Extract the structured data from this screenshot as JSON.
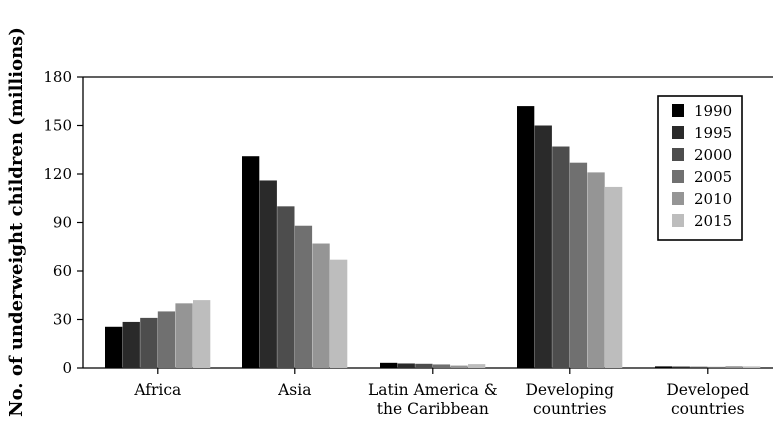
{
  "chart_data": {
    "type": "bar",
    "title": "",
    "xlabel": "",
    "ylabel": "No. of underweight children (millions)",
    "ylim": [
      0,
      180
    ],
    "yticks": [
      0,
      30,
      60,
      90,
      120,
      150,
      180
    ],
    "categories": [
      [
        "Africa"
      ],
      [
        "Asia"
      ],
      [
        "Latin America &",
        "the Caribbean"
      ],
      [
        "Developing",
        "countries"
      ],
      [
        "Developed",
        "countries"
      ]
    ],
    "series": [
      {
        "name": "1990",
        "color": "#000000",
        "values": [
          25.5,
          131,
          3.2,
          162,
          1.0
        ]
      },
      {
        "name": "1995",
        "color": "#2a2a2a",
        "values": [
          28.5,
          116,
          2.8,
          150,
          0.9
        ]
      },
      {
        "name": "2000",
        "color": "#4d4d4d",
        "values": [
          31,
          100,
          2.6,
          137,
          0.8
        ]
      },
      {
        "name": "2005",
        "color": "#707070",
        "values": [
          35,
          88,
          2.2,
          127,
          0.7
        ]
      },
      {
        "name": "2010",
        "color": "#959595",
        "values": [
          40,
          77,
          1.5,
          121,
          1.1
        ]
      },
      {
        "name": "2015",
        "color": "#bdbdbd",
        "values": [
          42,
          67,
          2.4,
          112,
          1.0
        ]
      }
    ],
    "legend_position": "top-right",
    "grid": false
  }
}
